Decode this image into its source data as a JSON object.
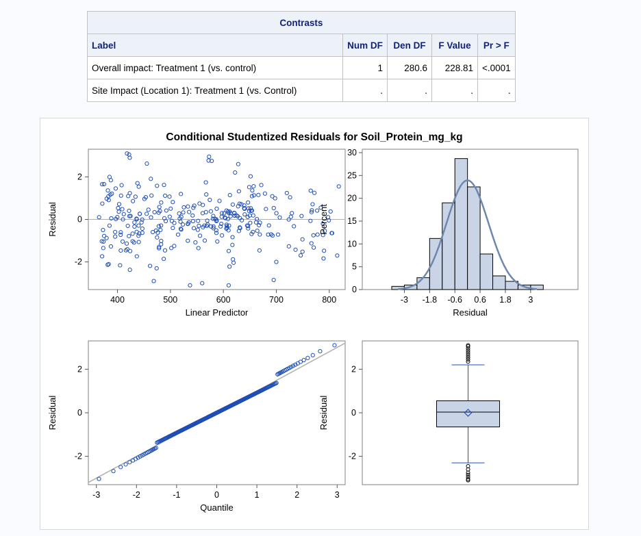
{
  "contrasts": {
    "title": "Contrasts",
    "headers": [
      "Label",
      "Num DF",
      "Den DF",
      "F Value",
      "Pr > F"
    ],
    "rows": [
      [
        "Overall impact: Treatment 1 (vs. control)",
        "1",
        "280.6",
        "228.81",
        "<.0001"
      ],
      [
        "Site Impact (Location 1): Treatment 1 (vs. Control)",
        ".",
        ".",
        ".",
        "."
      ]
    ]
  },
  "colors": {
    "marker": "#1f4fb3",
    "bar": "#c9d5e6",
    "curve": "#6d87ad",
    "refline": "#b0b0b0"
  },
  "chart_data": [
    {
      "type": "scatter",
      "title": "Conditional Studentized Residuals for Soil_Protein_mg_kg",
      "panel": "Residual vs Linear Predictor",
      "xlabel": "Linear Predictor",
      "ylabel": "Residual",
      "xlim": [
        345,
        830
      ],
      "ylim": [
        -3.3,
        3.3
      ],
      "xticks": [
        "400",
        "500",
        "600",
        "700",
        "800"
      ],
      "yticks": [
        "-2",
        "0",
        "2"
      ],
      "refline_y": 0,
      "highlighted_points": [
        {
          "x": 418,
          "y": 3.1
        },
        {
          "x": 422,
          "y": 3.05
        },
        {
          "x": 573,
          "y": 2.95
        },
        {
          "x": 578,
          "y": 2.75
        },
        {
          "x": 628,
          "y": 2.6
        },
        {
          "x": 765,
          "y": 1.35
        },
        {
          "x": 784,
          "y": 0.55
        },
        {
          "x": 818,
          "y": 1.55
        },
        {
          "x": 815,
          "y": -1.7
        },
        {
          "x": 560,
          "y": -3.0
        },
        {
          "x": 537,
          "y": -3.1
        },
        {
          "x": 610,
          "y": -3.1
        },
        {
          "x": 474,
          "y": -2.3
        },
        {
          "x": 700,
          "y": -2.0
        },
        {
          "x": 695,
          "y": -2.85
        }
      ],
      "n_points_approx": 300
    },
    {
      "type": "bar",
      "panel": "Histogram with normal density",
      "xlabel": "Residual",
      "ylabel": "Percent",
      "xticks": [
        "-3",
        "-1.8",
        "-0.6",
        "0.6",
        "1.8",
        "3"
      ],
      "yticks": [
        "0",
        "5",
        "10",
        "15",
        "20",
        "25",
        "30"
      ],
      "ylim": [
        0,
        30
      ],
      "bin_width": 0.6,
      "bin_centers": [
        -3.3,
        -2.7,
        -2.1,
        -1.5,
        -0.9,
        -0.3,
        0.3,
        0.9,
        1.5,
        2.1,
        2.7,
        3.3
      ],
      "percent": [
        0.7,
        1.0,
        2.6,
        11.2,
        19.0,
        28.7,
        22.5,
        7.8,
        3.0,
        1.8,
        1.0,
        1.0
      ],
      "overlay": "normal density curve, mean 0, sd 1"
    },
    {
      "type": "scatter",
      "panel": "Normal Q-Q plot",
      "xlabel": "Quantile",
      "ylabel": "Residual",
      "xlim": [
        -3.2,
        3.2
      ],
      "ylim": [
        -3.3,
        3.3
      ],
      "xticks": [
        "-3",
        "-2",
        "-1",
        "0",
        "1",
        "2",
        "3"
      ],
      "yticks": [
        "-2",
        "0",
        "2"
      ],
      "reference_line": {
        "intercept": 0,
        "slope": 1
      }
    },
    {
      "type": "box",
      "panel": "Box plot of residuals",
      "ylabel": "Residual",
      "ylim": [
        -3.3,
        3.3
      ],
      "yticks": [
        "-2",
        "0",
        "2"
      ],
      "q1": -0.65,
      "median": 0.03,
      "q3": 0.55,
      "mean": 0.0,
      "whisker_low": -2.3,
      "whisker_high": 2.2,
      "outliers": [
        2.35,
        2.45,
        2.55,
        2.65,
        2.75,
        2.85,
        2.95,
        3.05,
        3.1,
        -2.45,
        -2.6,
        -2.75,
        -2.85,
        -2.95,
        -3.05,
        -3.1
      ]
    }
  ]
}
